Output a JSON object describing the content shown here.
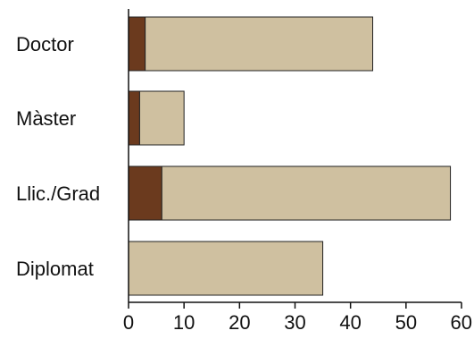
{
  "chart_data": {
    "type": "bar",
    "orientation": "horizontal",
    "stacked": true,
    "categories": [
      "Doctor",
      "Màster",
      "Llic./Grad",
      "Diplomat"
    ],
    "series": [
      {
        "values": [
          3,
          2,
          6,
          0
        ],
        "color": "#6b3a1e"
      },
      {
        "values": [
          41,
          8,
          52,
          35
        ],
        "color": "#cfc0a0"
      }
    ],
    "xticks": [
      "0",
      "10",
      "20",
      "30",
      "40",
      "50",
      "60"
    ],
    "xlim": [
      0,
      60
    ],
    "title": "",
    "xlabel": "",
    "ylabel": "",
    "grid": false,
    "legend": "none"
  }
}
